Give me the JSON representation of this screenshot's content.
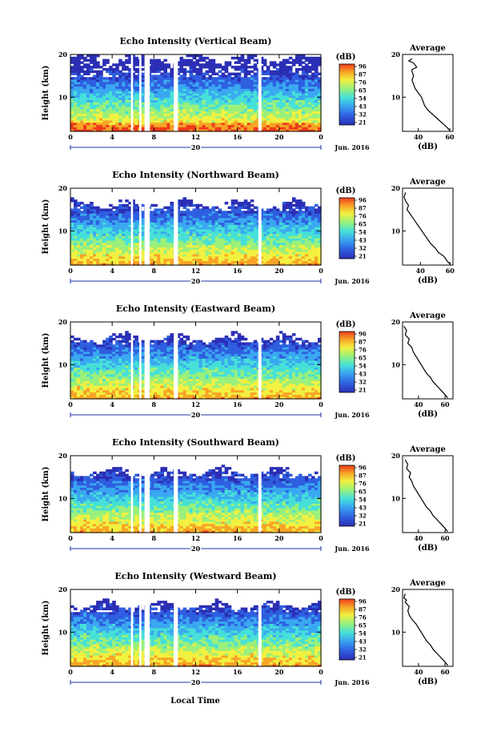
{
  "chart_data": [
    {
      "type": "heatmap",
      "title": "Echo Intensity (Vertical Beam)",
      "ylabel": "Height (km)",
      "y_ticks": [
        "20",
        "10"
      ],
      "ylim": [
        2,
        20
      ],
      "x_ticks": [
        "0",
        "4",
        "8",
        "12",
        "16",
        "20",
        "0"
      ],
      "xlim": [
        0,
        24
      ],
      "day_label": "20",
      "month_label": "Jun. 2016",
      "colorbar": {
        "unit": "(dB)",
        "ticks": [
          "96",
          "87",
          "76",
          "65",
          "54",
          "43",
          "32",
          "21"
        ],
        "range": [
          21,
          96
        ]
      },
      "data_gaps_hours": [
        [
          5.8,
          6.0
        ],
        [
          6.6,
          6.8
        ],
        [
          7.1,
          7.6
        ],
        [
          9.9,
          10.3
        ],
        [
          18.0,
          18.3
        ]
      ],
      "average": {
        "title": "Average",
        "xlabel": "(dB)",
        "x_ticks": [
          "40",
          "60"
        ],
        "y_ticks": [
          "20",
          "10"
        ],
        "xlim": [
          30,
          62
        ],
        "profile": [
          [
            60,
            2.2
          ],
          [
            58,
            3
          ],
          [
            55,
            4
          ],
          [
            52,
            5
          ],
          [
            49,
            6
          ],
          [
            46,
            7
          ],
          [
            44,
            8
          ],
          [
            43,
            9
          ],
          [
            42,
            10
          ],
          [
            40,
            11
          ],
          [
            38,
            12
          ],
          [
            37,
            13
          ],
          [
            36,
            14
          ],
          [
            37,
            15
          ],
          [
            36,
            16
          ],
          [
            36,
            16.5
          ],
          [
            39,
            17
          ],
          [
            37,
            18
          ],
          [
            34,
            18.5
          ],
          [
            36,
            19
          ]
        ]
      }
    },
    {
      "type": "heatmap",
      "title": "Echo Intensity (Northward Beam)",
      "ylabel": "Height (km)",
      "y_ticks": [
        "20",
        "10"
      ],
      "ylim": [
        2,
        20
      ],
      "x_ticks": [
        "0",
        "4",
        "8",
        "12",
        "16",
        "20",
        "0"
      ],
      "xlim": [
        0,
        24
      ],
      "day_label": "20",
      "month_label": "Jun. 2016",
      "colorbar": {
        "unit": "(dB)",
        "ticks": [
          "96",
          "87",
          "76",
          "65",
          "54",
          "43",
          "32",
          "21"
        ],
        "range": [
          21,
          96
        ]
      },
      "data_gaps_hours": [
        [
          5.8,
          6.0
        ],
        [
          6.6,
          6.8
        ],
        [
          7.1,
          7.6
        ],
        [
          9.9,
          10.3
        ],
        [
          18.0,
          18.3
        ]
      ],
      "average": {
        "title": "Average",
        "xlabel": "(dB)",
        "x_ticks": [
          "40",
          "60"
        ],
        "y_ticks": [
          "20",
          "10"
        ],
        "xlim": [
          28,
          62
        ],
        "profile": [
          [
            60,
            2.2
          ],
          [
            58,
            3
          ],
          [
            56,
            4
          ],
          [
            52,
            5
          ],
          [
            50,
            6
          ],
          [
            47,
            7
          ],
          [
            45,
            8
          ],
          [
            43,
            9
          ],
          [
            41,
            10
          ],
          [
            39,
            11
          ],
          [
            37,
            12
          ],
          [
            35,
            13
          ],
          [
            33,
            14
          ],
          [
            31,
            15
          ],
          [
            32,
            16
          ],
          [
            30,
            17
          ],
          [
            29,
            18
          ],
          [
            30,
            19
          ]
        ]
      }
    },
    {
      "type": "heatmap",
      "title": "Echo Intensity (Eastward Beam)",
      "ylabel": "Height (km)",
      "y_ticks": [
        "20",
        "10"
      ],
      "ylim": [
        2,
        20
      ],
      "x_ticks": [
        "0",
        "4",
        "8",
        "12",
        "16",
        "20",
        "0"
      ],
      "xlim": [
        0,
        24
      ],
      "day_label": "20",
      "month_label": "Jun. 2016",
      "colorbar": {
        "unit": "(dB)",
        "ticks": [
          "96",
          "87",
          "76",
          "65",
          "54",
          "43",
          "32",
          "21"
        ],
        "range": [
          21,
          96
        ]
      },
      "data_gaps_hours": [
        [
          5.8,
          6.0
        ],
        [
          6.6,
          6.8
        ],
        [
          7.1,
          7.6
        ],
        [
          9.9,
          10.3
        ],
        [
          18.0,
          18.3
        ]
      ],
      "average": {
        "title": "Average",
        "xlabel": "(dB)",
        "x_ticks": [
          "40",
          "60"
        ],
        "y_ticks": [
          "20",
          "10"
        ],
        "xlim": [
          28,
          66
        ],
        "profile": [
          [
            62,
            2.2
          ],
          [
            60,
            3
          ],
          [
            57,
            4
          ],
          [
            54,
            5
          ],
          [
            51,
            6
          ],
          [
            49,
            7
          ],
          [
            46,
            8
          ],
          [
            44,
            9
          ],
          [
            42,
            10
          ],
          [
            40,
            11
          ],
          [
            38,
            12
          ],
          [
            36,
            13
          ],
          [
            35,
            14
          ],
          [
            32,
            15
          ],
          [
            33,
            16
          ],
          [
            30,
            17
          ],
          [
            31,
            18
          ],
          [
            29,
            19
          ]
        ]
      }
    },
    {
      "type": "heatmap",
      "title": "Echo Intensity (Southward Beam)",
      "ylabel": "Height (km)",
      "y_ticks": [
        "20",
        "10"
      ],
      "ylim": [
        2,
        20
      ],
      "x_ticks": [
        "0",
        "4",
        "8",
        "12",
        "16",
        "20",
        "0"
      ],
      "xlim": [
        0,
        24
      ],
      "day_label": "20",
      "month_label": "Jun. 2016",
      "colorbar": {
        "unit": "(dB)",
        "ticks": [
          "96",
          "87",
          "76",
          "65",
          "54",
          "43",
          "32",
          "21"
        ],
        "range": [
          21,
          96
        ]
      },
      "data_gaps_hours": [
        [
          5.8,
          6.0
        ],
        [
          6.6,
          6.8
        ],
        [
          7.1,
          7.6
        ],
        [
          9.9,
          10.3
        ],
        [
          18.0,
          18.3
        ]
      ],
      "average": {
        "title": "Average",
        "xlabel": "(dB)",
        "x_ticks": [
          "40",
          "60"
        ],
        "y_ticks": [
          "20",
          "10"
        ],
        "xlim": [
          28,
          66
        ],
        "profile": [
          [
            62,
            2.2
          ],
          [
            60,
            3
          ],
          [
            57,
            4
          ],
          [
            54,
            5
          ],
          [
            51,
            6
          ],
          [
            49,
            7
          ],
          [
            46,
            8
          ],
          [
            44,
            9
          ],
          [
            42,
            10
          ],
          [
            40,
            11
          ],
          [
            38,
            12
          ],
          [
            36,
            13
          ],
          [
            35,
            14
          ],
          [
            33,
            15
          ],
          [
            34,
            16
          ],
          [
            31,
            17
          ],
          [
            32,
            18
          ],
          [
            30,
            19
          ]
        ]
      }
    },
    {
      "type": "heatmap",
      "title": "Echo Intensity (Westward Beam)",
      "ylabel": "Height (km)",
      "y_ticks": [
        "20",
        "10"
      ],
      "ylim": [
        2,
        20
      ],
      "x_ticks": [
        "0",
        "4",
        "8",
        "12",
        "16",
        "20",
        "0"
      ],
      "xlim": [
        0,
        24
      ],
      "day_label": "20",
      "month_label": "Jun. 2016",
      "colorbar": {
        "unit": "(dB)",
        "ticks": [
          "96",
          "87",
          "76",
          "65",
          "54",
          "43",
          "32",
          "21"
        ],
        "range": [
          21,
          96
        ]
      },
      "data_gaps_hours": [
        [
          5.8,
          6.0
        ],
        [
          6.6,
          6.8
        ],
        [
          7.1,
          7.6
        ],
        [
          9.9,
          10.3
        ],
        [
          18.0,
          18.3
        ]
      ],
      "average": {
        "title": "Average",
        "xlabel": "(dB)",
        "x_ticks": [
          "40",
          "60"
        ],
        "y_ticks": [
          "20",
          "10"
        ],
        "xlim": [
          28,
          66
        ],
        "profile": [
          [
            62,
            2.2
          ],
          [
            60,
            3
          ],
          [
            57,
            4
          ],
          [
            54,
            5
          ],
          [
            51,
            6
          ],
          [
            49,
            7
          ],
          [
            46,
            8
          ],
          [
            44,
            9
          ],
          [
            42,
            10
          ],
          [
            40,
            11
          ],
          [
            38,
            12
          ],
          [
            35,
            13
          ],
          [
            33,
            14
          ],
          [
            32,
            15
          ],
          [
            33,
            16
          ],
          [
            30,
            17
          ],
          [
            31,
            17.5
          ],
          [
            29,
            18
          ],
          [
            30,
            19
          ]
        ]
      }
    }
  ],
  "footer": {
    "xlabel": "Local Time"
  },
  "colors": {
    "colormap": [
      "#2b2fb5",
      "#2f5fe0",
      "#3aa8f0",
      "#46e0d8",
      "#9af07a",
      "#f2f040",
      "#f7a426",
      "#ee3b1c"
    ]
  }
}
